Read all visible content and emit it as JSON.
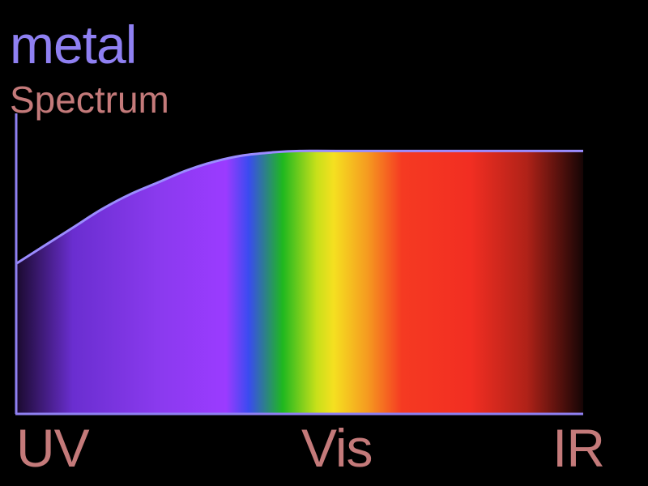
{
  "title": "metal",
  "subtitle": "Spectrum",
  "colors": {
    "title": "#8f80f2",
    "subtitle": "#c47a7a",
    "axis": "#8f80f2",
    "curve": "#9b8cff",
    "labels": "#c47a7a",
    "background": "#000000"
  },
  "chart_data": {
    "type": "area",
    "x_labels": [
      "UV",
      "Vis",
      "IR"
    ],
    "x": [
      0,
      0.05,
      0.1,
      0.15,
      0.2,
      0.25,
      0.3,
      0.35,
      0.4,
      0.45,
      0.5,
      0.6,
      0.7,
      0.8,
      0.9,
      1.0
    ],
    "values": [
      0.5,
      0.56,
      0.62,
      0.68,
      0.73,
      0.77,
      0.81,
      0.84,
      0.86,
      0.87,
      0.875,
      0.875,
      0.875,
      0.875,
      0.875,
      0.875
    ],
    "ylim": [
      0,
      1
    ],
    "xlim": [
      0,
      1
    ],
    "fill_gradient": [
      {
        "at": 0.0,
        "color": "#1a0a2e"
      },
      {
        "at": 0.1,
        "color": "#6a2ed0"
      },
      {
        "at": 0.25,
        "color": "#8a3aee"
      },
      {
        "at": 0.37,
        "color": "#9b3bff"
      },
      {
        "at": 0.41,
        "color": "#3a4bf0"
      },
      {
        "at": 0.47,
        "color": "#1fb81f"
      },
      {
        "at": 0.53,
        "color": "#c8e01a"
      },
      {
        "at": 0.56,
        "color": "#f5e020"
      },
      {
        "at": 0.62,
        "color": "#f59a20"
      },
      {
        "at": 0.68,
        "color": "#f53a22"
      },
      {
        "at": 0.8,
        "color": "#f22e22"
      },
      {
        "at": 0.9,
        "color": "#b02218"
      },
      {
        "at": 1.0,
        "color": "#150505"
      }
    ],
    "grid": false,
    "legend": "none"
  }
}
